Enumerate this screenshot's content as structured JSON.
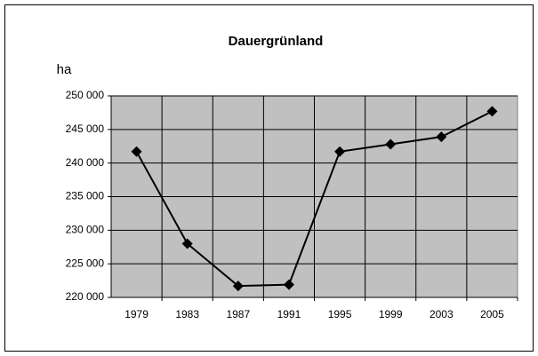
{
  "chart_data": {
    "type": "line",
    "title": "Dauergrünland",
    "y_label": "ha",
    "categories": [
      "1979",
      "1983",
      "1987",
      "1991",
      "1995",
      "1999",
      "2003",
      "2005"
    ],
    "series": [
      {
        "name": "Dauergrünland",
        "color": "#000000",
        "values": [
          241700,
          228000,
          221700,
          221900,
          241700,
          242800,
          243900,
          247700
        ]
      }
    ],
    "ylim": [
      220000,
      250000
    ],
    "yticks": [
      {
        "value": 220000,
        "label": "220 000"
      },
      {
        "value": 225000,
        "label": "225 000"
      },
      {
        "value": 230000,
        "label": "230 000"
      },
      {
        "value": 235000,
        "label": "235 000"
      },
      {
        "value": 240000,
        "label": "240 000"
      },
      {
        "value": 245000,
        "label": "245 000"
      },
      {
        "value": 250000,
        "label": "250 000"
      }
    ],
    "grid": true,
    "plot_background": "#c0c0c0"
  }
}
